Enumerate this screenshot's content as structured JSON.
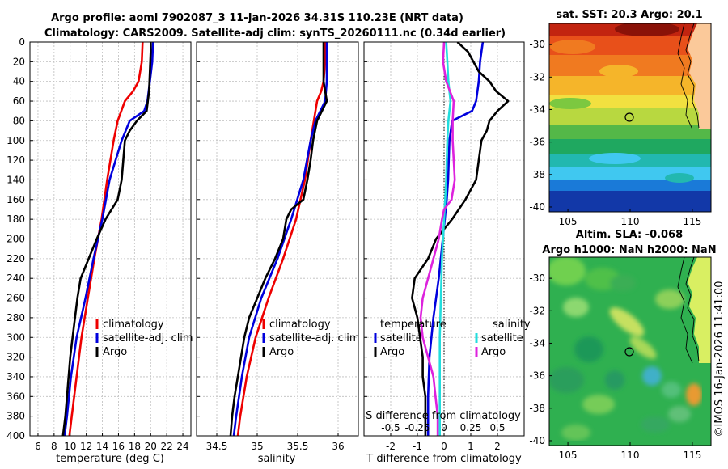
{
  "header": {
    "title_line1": "Argo profile: aoml 7902087_3 11-Jan-2026 34.31S 110.23E (NRT data)",
    "title_line2": "Climatology: CARS2009. Satellite-adj clim: synTS_20260111.nc (0.34d earlier)"
  },
  "colors": {
    "climatology": "#ee0000",
    "satellite": "#0000dd",
    "argo": "#000000",
    "sat_salinity": "#22dddd",
    "argo_salinity": "#dd22dd"
  },
  "chart_data": [
    {
      "type": "line",
      "id": "temperature",
      "xlabel": "temperature (deg C)",
      "xlim": [
        5,
        25
      ],
      "ylim": [
        0,
        400
      ],
      "x_ticks": [
        6,
        8,
        10,
        12,
        14,
        16,
        18,
        20,
        22,
        24
      ],
      "y_ticks": [
        0,
        20,
        40,
        60,
        80,
        100,
        120,
        140,
        160,
        180,
        200,
        220,
        240,
        260,
        280,
        300,
        320,
        340,
        360,
        380,
        400
      ],
      "legend": [
        "climatology",
        "satellite-adj. clim",
        "Argo"
      ],
      "series": [
        {
          "name": "climatology",
          "depth": [
            0,
            20,
            40,
            50,
            60,
            80,
            100,
            140,
            180,
            220,
            260,
            300,
            340,
            380,
            400
          ],
          "values": [
            19.0,
            18.9,
            18.5,
            17.8,
            16.8,
            15.9,
            15.4,
            14.6,
            13.9,
            13.0,
            12.2,
            11.4,
            10.8,
            10.2,
            9.9
          ]
        },
        {
          "name": "satellite-adj. clim",
          "depth": [
            0,
            20,
            40,
            60,
            70,
            80,
            100,
            140,
            180,
            220,
            260,
            300,
            340,
            380,
            400
          ],
          "values": [
            20.3,
            20.2,
            19.9,
            19.6,
            19.2,
            17.4,
            16.4,
            14.9,
            14.0,
            12.9,
            11.9,
            10.8,
            10.1,
            9.6,
            9.3
          ]
        },
        {
          "name": "Argo",
          "depth": [
            0,
            10,
            30,
            50,
            70,
            80,
            90,
            100,
            120,
            140,
            160,
            180,
            200,
            220,
            240,
            260,
            280,
            300,
            320,
            340,
            360,
            380,
            400
          ],
          "values": [
            20.0,
            20.0,
            19.9,
            19.8,
            19.5,
            18.3,
            17.4,
            16.8,
            16.6,
            16.4,
            15.9,
            14.4,
            13.3,
            12.3,
            11.3,
            10.9,
            10.6,
            10.3,
            10.0,
            9.8,
            9.6,
            9.4,
            9.1
          ]
        }
      ]
    },
    {
      "type": "line",
      "id": "salinity",
      "xlabel": "salinity",
      "xlim": [
        34.25,
        36.25
      ],
      "ylim": [
        0,
        400
      ],
      "x_ticks": [
        34.5,
        35,
        35.5,
        36
      ],
      "x_tick_labels": [
        "34.5",
        "35",
        "35.5",
        "36"
      ],
      "legend": [
        "climatology",
        "satellite-adj. clim",
        "Argo"
      ],
      "series": [
        {
          "name": "climatology",
          "depth": [
            0,
            20,
            40,
            50,
            60,
            80,
            100,
            140,
            180,
            220,
            260,
            300,
            340,
            380,
            400
          ],
          "values": [
            35.84,
            35.84,
            35.82,
            35.79,
            35.74,
            35.7,
            35.66,
            35.59,
            35.48,
            35.32,
            35.14,
            34.98,
            34.87,
            34.79,
            34.76
          ]
        },
        {
          "name": "satellite-adj. clim",
          "depth": [
            0,
            20,
            40,
            60,
            80,
            100,
            140,
            180,
            220,
            260,
            300,
            340,
            380,
            400
          ],
          "values": [
            35.86,
            35.86,
            35.86,
            35.84,
            35.72,
            35.66,
            35.57,
            35.42,
            35.25,
            35.05,
            34.9,
            34.81,
            34.74,
            34.71
          ]
        },
        {
          "name": "Argo",
          "depth": [
            0,
            20,
            40,
            60,
            80,
            100,
            120,
            140,
            160,
            170,
            180,
            200,
            220,
            240,
            260,
            280,
            300,
            320,
            340,
            360,
            380,
            400
          ],
          "values": [
            35.82,
            35.82,
            35.82,
            35.86,
            35.74,
            35.69,
            35.66,
            35.62,
            35.57,
            35.42,
            35.36,
            35.32,
            35.22,
            35.1,
            35.0,
            34.9,
            34.84,
            34.8,
            34.76,
            34.72,
            34.69,
            34.67
          ]
        }
      ]
    },
    {
      "type": "line",
      "id": "difference",
      "xlabel": "T difference from climatology",
      "xlabel_top": "S difference from climatology",
      "xlim": [
        -3,
        3
      ],
      "ylim": [
        0,
        400
      ],
      "x_ticks": [
        -2,
        -1,
        0,
        1,
        2
      ],
      "top_ticks": [
        "-0.5",
        "-0.25",
        "0",
        "0.25",
        "0.5"
      ],
      "legend_temperature_title": "temperature",
      "legend_salinity_title": "salinity",
      "legend": [
        "satellite",
        "Argo",
        "satellite",
        "Argo"
      ],
      "series": [
        {
          "name": "temperature satellite",
          "depth": [
            0,
            20,
            40,
            60,
            70,
            80,
            100,
            140,
            160,
            200,
            240,
            280,
            320,
            360,
            400
          ],
          "values": [
            1.45,
            1.35,
            1.3,
            1.2,
            1.05,
            0.3,
            0.2,
            0.15,
            0.1,
            -0.05,
            -0.2,
            -0.4,
            -0.55,
            -0.6,
            -0.6
          ]
        },
        {
          "name": "temperature Argo",
          "depth": [
            0,
            10,
            30,
            40,
            50,
            60,
            70,
            80,
            90,
            100,
            120,
            140,
            160,
            180,
            200,
            220,
            240,
            260,
            280,
            300,
            320,
            340,
            360,
            400
          ],
          "values": [
            0.5,
            0.9,
            1.3,
            1.7,
            1.95,
            2.4,
            2.0,
            1.7,
            1.6,
            1.4,
            1.3,
            1.2,
            0.8,
            0.3,
            -0.3,
            -0.6,
            -1.1,
            -1.2,
            -1.0,
            -0.9,
            -0.8,
            -0.8,
            -0.7,
            -0.7
          ]
        },
        {
          "name": "salinity satellite",
          "depth": [
            0,
            20,
            40,
            60,
            80,
            100,
            140,
            180,
            220,
            260,
            300,
            340,
            380,
            400
          ],
          "values": [
            0.02,
            0.03,
            0.04,
            0.06,
            0.04,
            0.03,
            0.02,
            0.0,
            -0.02,
            -0.03,
            -0.04,
            -0.04,
            -0.04,
            -0.04
          ]
        },
        {
          "name": "salinity Argo",
          "depth": [
            0,
            20,
            40,
            60,
            80,
            100,
            120,
            140,
            160,
            170,
            180,
            200,
            220,
            240,
            260,
            280,
            300,
            320,
            340,
            360,
            380,
            400
          ],
          "values": [
            0.0,
            -0.01,
            0.02,
            0.09,
            0.08,
            0.08,
            0.09,
            0.1,
            0.07,
            0.0,
            -0.02,
            -0.05,
            -0.1,
            -0.15,
            -0.2,
            -0.22,
            -0.2,
            -0.15,
            -0.1,
            -0.08,
            -0.06,
            -0.06
          ]
        }
      ]
    },
    {
      "type": "heatmap",
      "id": "sst_map",
      "title": "sat. SST: 20.3 Argo: 20.1",
      "x_ticks": [
        "105",
        "110",
        "115"
      ],
      "y_ticks": [
        "-30",
        "-32",
        "-34",
        "-36",
        "-38",
        "-40"
      ],
      "xlim": [
        103.5,
        116.5
      ],
      "ylim": [
        -40.3,
        -28.7
      ],
      "marker": {
        "lon": 110.23,
        "lat": -34.31
      }
    },
    {
      "type": "heatmap",
      "id": "sla_map",
      "title_line1": "Altim. SLA: -0.068",
      "title_line2": "Argo h1000: NaN h2000: NaN",
      "x_ticks": [
        "105",
        "110",
        "115"
      ],
      "y_ticks": [
        "-30",
        "-32",
        "-34",
        "-36",
        "-38",
        "-40"
      ],
      "xlim": [
        103.5,
        116.5
      ],
      "ylim": [
        -40.3,
        -28.7
      ],
      "marker": {
        "lon": 110.23,
        "lat": -34.31
      }
    }
  ],
  "watermark": "©IMOS 16-Jan-2026 11:41:00"
}
